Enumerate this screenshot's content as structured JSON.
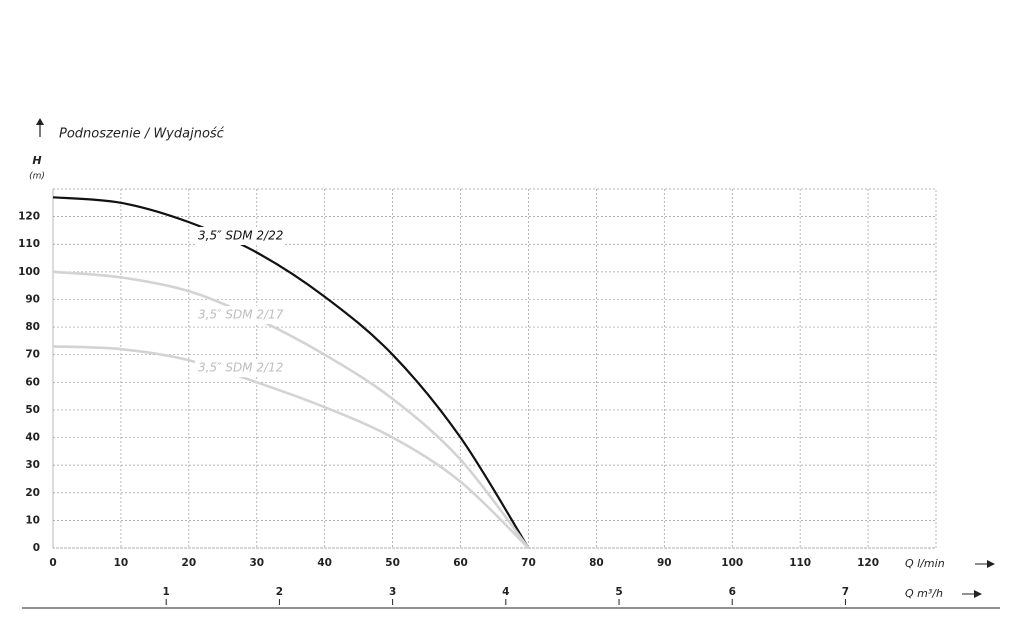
{
  "chart_data": {
    "type": "line",
    "title": "Podnoszenie / Wydajność",
    "y_label": "H",
    "y_unit": "(m)",
    "x_label": "Q l/min",
    "x2_label": "Q m³/h",
    "x": [
      0,
      10,
      20,
      30,
      40,
      50,
      60,
      70
    ],
    "series": [
      {
        "name": "3,5″ SDM 2/22",
        "color": "#111111",
        "values": [
          127,
          125,
          118,
          107,
          91,
          70,
          40,
          0
        ]
      },
      {
        "name": "3,5″ SDM 2/17",
        "color": "#d3d3d3",
        "values": [
          100,
          98,
          93,
          83,
          70,
          54,
          32,
          0
        ]
      },
      {
        "name": "3,5″ SDM 2/12",
        "color": "#d3d3d3",
        "values": [
          73,
          72,
          68,
          60,
          51,
          40,
          24,
          0
        ]
      }
    ],
    "xlim": [
      0,
      130
    ],
    "xticks": [
      0,
      10,
      20,
      30,
      40,
      50,
      60,
      70,
      80,
      90,
      100,
      110,
      120
    ],
    "ylim": [
      0,
      130
    ],
    "yticks": [
      0,
      10,
      20,
      30,
      40,
      50,
      60,
      70,
      80,
      90,
      100,
      110,
      120
    ],
    "x2lim": [
      0,
      7.8
    ],
    "x2ticks": [
      1,
      2,
      3,
      4,
      5,
      6,
      7
    ],
    "grid": true
  }
}
